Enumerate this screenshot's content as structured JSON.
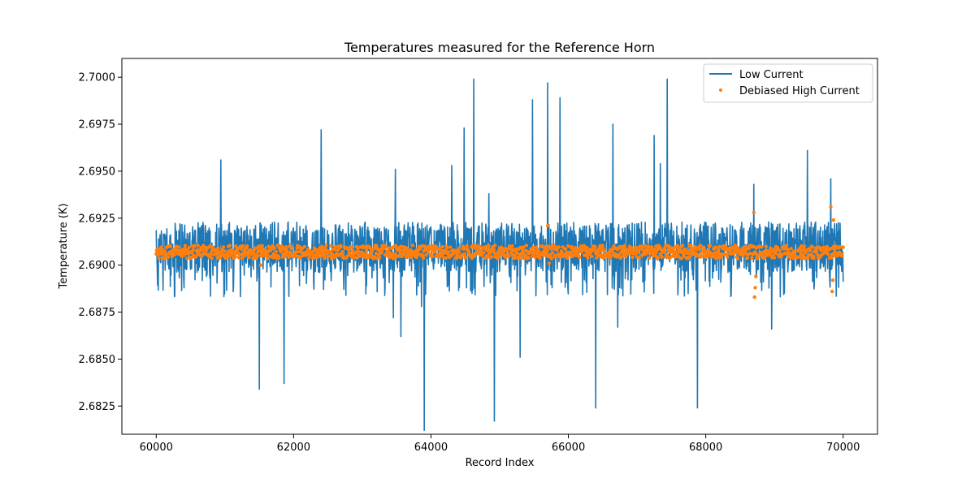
{
  "chart_data": {
    "type": "line",
    "title": "Temperatures measured for the Reference Horn",
    "xlabel": "Record Index",
    "ylabel": "Temperature (K)",
    "xlim": [
      59500,
      70500
    ],
    "ylim": [
      2.681,
      2.701
    ],
    "x_ticks": [
      60000,
      62000,
      64000,
      66000,
      68000,
      70000
    ],
    "y_ticks": [
      2.6825,
      2.685,
      2.6875,
      2.69,
      2.6925,
      2.695,
      2.6975,
      2.7
    ],
    "x_tick_labels": [
      "60000",
      "62000",
      "64000",
      "66000",
      "68000",
      "70000"
    ],
    "y_tick_labels": [
      "2.6825",
      "2.6850",
      "2.6875",
      "2.6900",
      "2.6925",
      "2.6950",
      "2.6975",
      "2.7000"
    ],
    "legend_position": "top-right",
    "series": [
      {
        "name": "Low Current",
        "kind": "line",
        "color": "#1f77b4",
        "x_range": [
          60000,
          70000
        ],
        "baseline": 2.6908,
        "noise_range": [
          2.6895,
          2.6923
        ],
        "spikes": [
          {
            "x": 60940,
            "y": 2.6956
          },
          {
            "x": 61500,
            "y": 2.6834
          },
          {
            "x": 61860,
            "y": 2.6837
          },
          {
            "x": 62400,
            "y": 2.6972
          },
          {
            "x": 63450,
            "y": 2.6872
          },
          {
            "x": 63480,
            "y": 2.6951
          },
          {
            "x": 63560,
            "y": 2.6862
          },
          {
            "x": 63860,
            "y": 2.6878
          },
          {
            "x": 63900,
            "y": 2.6812
          },
          {
            "x": 64300,
            "y": 2.6953
          },
          {
            "x": 64480,
            "y": 2.6973
          },
          {
            "x": 64620,
            "y": 2.6999
          },
          {
            "x": 64840,
            "y": 2.6938
          },
          {
            "x": 64920,
            "y": 2.6817
          },
          {
            "x": 65300,
            "y": 2.6851
          },
          {
            "x": 65480,
            "y": 2.6988
          },
          {
            "x": 65700,
            "y": 2.6997
          },
          {
            "x": 65880,
            "y": 2.6989
          },
          {
            "x": 66400,
            "y": 2.6824
          },
          {
            "x": 66650,
            "y": 2.6975
          },
          {
            "x": 66720,
            "y": 2.6867
          },
          {
            "x": 67250,
            "y": 2.6969
          },
          {
            "x": 67340,
            "y": 2.6954
          },
          {
            "x": 67440,
            "y": 2.6999
          },
          {
            "x": 67880,
            "y": 2.6824
          },
          {
            "x": 68700,
            "y": 2.6943
          },
          {
            "x": 68960,
            "y": 2.6866
          },
          {
            "x": 69480,
            "y": 2.6961
          },
          {
            "x": 69820,
            "y": 2.6946
          }
        ]
      },
      {
        "name": "Debiased High Current",
        "kind": "scatter",
        "color": "#ff7f0e",
        "x_range": [
          60000,
          70000
        ],
        "baseline": 2.6907,
        "noise_range": [
          2.6904,
          2.6911
        ],
        "outliers": [
          {
            "x": 61520,
            "y": 2.69
          },
          {
            "x": 65700,
            "y": 2.6921
          },
          {
            "x": 65720,
            "y": 2.6901
          },
          {
            "x": 68700,
            "y": 2.6928
          },
          {
            "x": 68710,
            "y": 2.6883
          },
          {
            "x": 68720,
            "y": 2.6888
          },
          {
            "x": 68730,
            "y": 2.6894
          },
          {
            "x": 69820,
            "y": 2.6931
          },
          {
            "x": 69840,
            "y": 2.6886
          },
          {
            "x": 69850,
            "y": 2.6892
          },
          {
            "x": 69860,
            "y": 2.6924
          }
        ]
      }
    ]
  }
}
